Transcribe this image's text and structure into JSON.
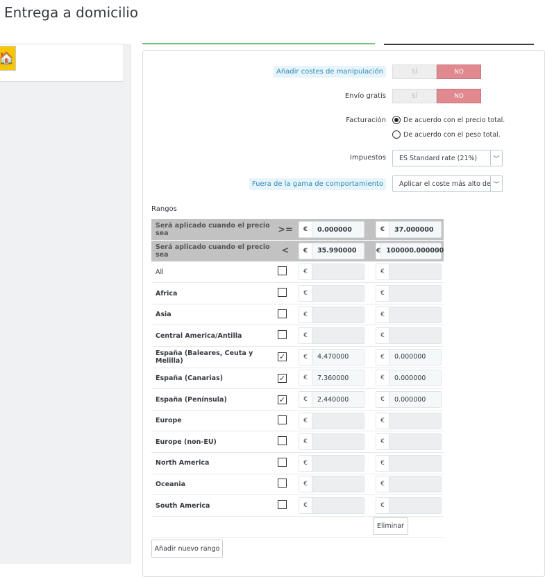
{
  "header": {
    "title": "Entrega a domicilio"
  },
  "sidebar": {
    "logo_icon": "house-icon"
  },
  "form": {
    "handling": {
      "label": "Añadir costes de manipulación",
      "yes": "SÍ",
      "no": "NO",
      "value": "NO"
    },
    "free": {
      "label": "Envío gratis",
      "yes": "SÍ",
      "no": "NO",
      "value": "NO"
    },
    "billing": {
      "label": "Facturación",
      "options": [
        "De acuerdo con el precio total.",
        "De acuerdo con el peso total."
      ],
      "selected": 0
    },
    "tax": {
      "label": "Impuestos",
      "value": "ES Standard rate (21%)"
    },
    "out_of_range": {
      "label": "Fuera de la gama de comportamiento",
      "value": "Aplicar el coste más alto de"
    }
  },
  "ranges": {
    "title": "Rangos",
    "currency": "€",
    "header_rows": [
      {
        "label": "Será aplicado cuando el precio sea",
        "op": ">=",
        "values": [
          "0.000000",
          "37.000000"
        ]
      },
      {
        "label": "Será aplicado cuando el precio sea",
        "op": "<",
        "values": [
          "35.990000",
          "100000.000000"
        ]
      }
    ],
    "zones": [
      {
        "name": "All",
        "checked": false,
        "values": [
          "",
          ""
        ]
      },
      {
        "name": "Africa",
        "checked": false,
        "values": [
          "",
          ""
        ]
      },
      {
        "name": "Asia",
        "checked": false,
        "values": [
          "",
          ""
        ]
      },
      {
        "name": "Central America/Antilla",
        "checked": false,
        "values": [
          "",
          ""
        ]
      },
      {
        "name": "España (Baleares, Ceuta y Melilla)",
        "checked": true,
        "values": [
          "4.470000",
          "0.000000"
        ]
      },
      {
        "name": "España (Canarias)",
        "checked": true,
        "values": [
          "7.360000",
          "0.000000"
        ]
      },
      {
        "name": "España (Península)",
        "checked": true,
        "values": [
          "2.440000",
          "0.000000"
        ]
      },
      {
        "name": "Europe",
        "checked": false,
        "values": [
          "",
          ""
        ]
      },
      {
        "name": "Europe (non-EU)",
        "checked": false,
        "values": [
          "",
          ""
        ]
      },
      {
        "name": "North America",
        "checked": false,
        "values": [
          "",
          ""
        ]
      },
      {
        "name": "Oceania",
        "checked": false,
        "values": [
          "",
          ""
        ]
      },
      {
        "name": "South America",
        "checked": false,
        "values": [
          "",
          ""
        ]
      }
    ],
    "delete_label": "Eliminar",
    "add_label": "Añadir nuevo rango"
  },
  "colors": {
    "no_active": "#e08a90",
    "tab_active": "#72c279"
  }
}
